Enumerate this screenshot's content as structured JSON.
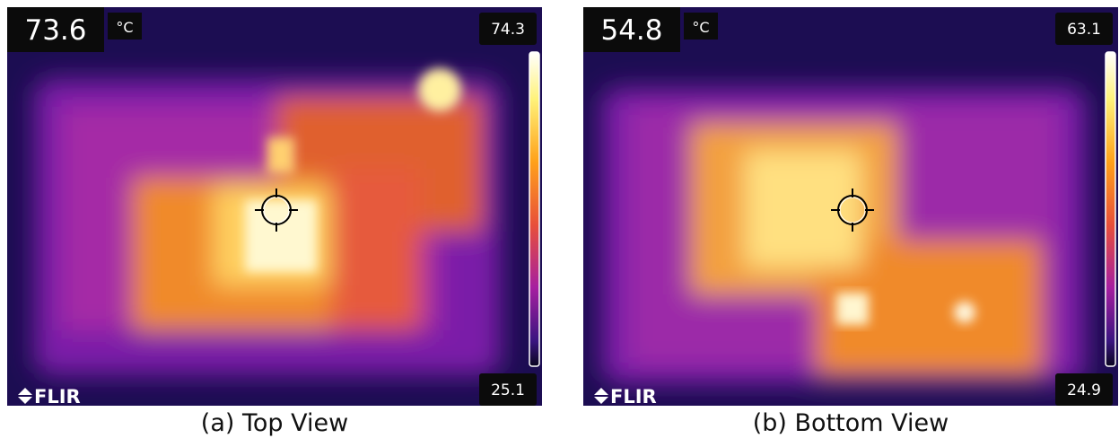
{
  "panels": [
    {
      "spot_temperature": 73.6,
      "unit": "°C",
      "scale_max": 74.3,
      "scale_min": 25.1,
      "logo": "FLIR",
      "caption": "(a) Top View"
    },
    {
      "spot_temperature": 54.8,
      "unit": "°C",
      "scale_max": 63.1,
      "scale_min": 24.9,
      "logo": "FLIR",
      "caption": "(b) Bottom View"
    }
  ]
}
